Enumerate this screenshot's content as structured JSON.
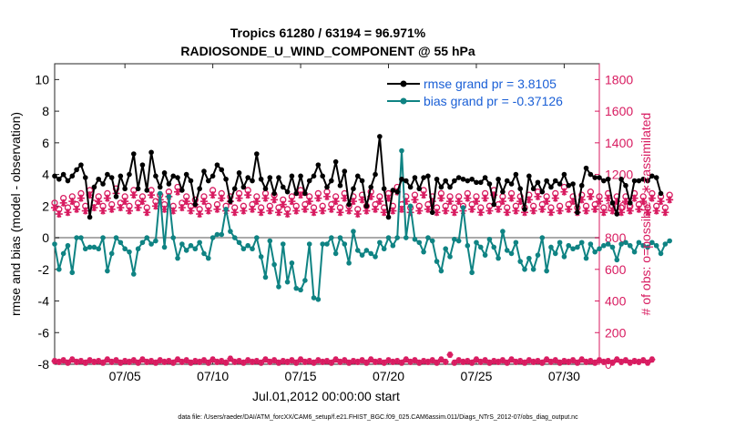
{
  "chart_data": {
    "type": "line",
    "title_line1": "Tropics 61280 / 63194 = 96.971%",
    "title_line2": "RADIOSONDE_U_WIND_COMPONENT @ 55 hPa",
    "ylabel_left": "rmse and bias (model - observation)",
    "ylabel_right": "# of obs: o=possible; ∗=assimilated",
    "xlabel": "Jul.01,2012 00:00:00 start",
    "footnote": "data file: /Users/raeder/DAI/ATM_forcXX/CAM6_setup/f.e21.FHIST_BGC.f09_025.CAM6assim.011/Diags_NTrS_2012-07/obs_diag_output.nc",
    "ylim_left": [
      -8,
      11
    ],
    "ylim_right": [
      0,
      1900
    ],
    "xlim": [
      1,
      32
    ],
    "left_ticks": [
      "-8",
      "-6",
      "-4",
      "-2",
      "0",
      "2",
      "4",
      "6",
      "8",
      "10"
    ],
    "right_ticks": [
      "0",
      "200",
      "400",
      "600",
      "800",
      "1000",
      "1200",
      "1400",
      "1600",
      "1800"
    ],
    "x_ticks": [
      {
        "day": 5,
        "label": "07/05"
      },
      {
        "day": 10,
        "label": "07/10"
      },
      {
        "day": 15,
        "label": "07/15"
      },
      {
        "day": 20,
        "label": "07/20"
      },
      {
        "day": 25,
        "label": "07/25"
      },
      {
        "day": 30,
        "label": "07/30"
      }
    ],
    "legend": {
      "placement": "top-right",
      "rmse_label": "rmse grand pr = 3.8105",
      "bias_label": "bias grand pr = -0.37126"
    },
    "colors": {
      "rmse": "#000000",
      "bias": "#0f8383",
      "obs": "#d81b60",
      "legend_text": "#1a5fd6",
      "zero_line": "#aaaaaa"
    },
    "x_start": 1.0,
    "x_step": 0.25,
    "series": [
      {
        "name": "rmse",
        "values": [
          3.9,
          3.7,
          4.0,
          3.6,
          3.9,
          4.3,
          4.6,
          3.8,
          1.3,
          3.2,
          3.7,
          3.4,
          4.0,
          3.8,
          2.6,
          3.9,
          3.1,
          4.0,
          5.3,
          3.1,
          4.6,
          3.0,
          5.4,
          3.9,
          3.2,
          4.1,
          3.4,
          3.9,
          3.8,
          3.0,
          4.0,
          3.6,
          2.1,
          3.1,
          4.2,
          3.6,
          3.9,
          4.6,
          4.3,
          3.7,
          2.3,
          3.1,
          4.1,
          3.2,
          3.8,
          3.6,
          5.3,
          3.7,
          3.1,
          3.8,
          2.8,
          3.8,
          3.2,
          2.9,
          3.9,
          2.8,
          3.9,
          2.8,
          3.6,
          3.9,
          4.6,
          3.9,
          3.2,
          3.6,
          4.8,
          3.3,
          4.2,
          2.1,
          3.1,
          3.9,
          3.6,
          2.0,
          3.2,
          4.0,
          6.4,
          3.1,
          1.3,
          3.0,
          2.9,
          3.7,
          3.6,
          3.2,
          3.8,
          3.1,
          3.8,
          3.9,
          1.6,
          3.7,
          3.2,
          3.6,
          3.2,
          3.6,
          3.8,
          3.7,
          3.6,
          3.7,
          3.5,
          3.5,
          3.8,
          3.4,
          2.1,
          3.7,
          2.9,
          3.6,
          3.4,
          4.0,
          3.1,
          1.8,
          3.9,
          3.1,
          3.5,
          2.9,
          3.6,
          3.2,
          3.6,
          3.4,
          4.0,
          3.3,
          3.4,
          1.6,
          3.3,
          4.4,
          4.0,
          3.8,
          3.8,
          3.6,
          3.7,
          2.2,
          1.5,
          3.7,
          3.3,
          2.2,
          3.6,
          3.6,
          3.7,
          3.6,
          3.9,
          3.8,
          2.8
        ]
      },
      {
        "name": "bias",
        "values": [
          -0.4,
          -2.0,
          -1.0,
          -0.5,
          -2.2,
          0.0,
          0.0,
          -0.7,
          -0.6,
          -0.6,
          -0.7,
          0.0,
          -2.1,
          -1.0,
          0.0,
          -0.3,
          -0.7,
          -0.9,
          -2.3,
          -0.7,
          -0.3,
          0.0,
          -0.4,
          -0.2,
          2.8,
          -0.6,
          2.6,
          0.0,
          -1.3,
          -0.4,
          -0.8,
          -0.5,
          -0.7,
          -0.3,
          -1.0,
          -1.3,
          0.0,
          0.2,
          0.2,
          1.8,
          0.4,
          0.0,
          -0.3,
          -0.7,
          -0.5,
          -0.7,
          0.0,
          -1.2,
          -2.5,
          -0.2,
          -1.7,
          -3.1,
          -0.4,
          -2.8,
          -1.6,
          -3.2,
          -3.3,
          -2.7,
          -0.4,
          -3.8,
          -3.9,
          -0.4,
          -0.4,
          0.0,
          -1.0,
          0.0,
          -0.4,
          -1.6,
          0.4,
          -0.8,
          -1.1,
          -0.8,
          -1.0,
          -1.2,
          -0.3,
          -0.7,
          0.0,
          -0.5,
          0.0,
          5.5,
          0.0,
          2.0,
          -0.1,
          -0.3,
          -0.9,
          0.0,
          -0.2,
          -1.5,
          -2.1,
          -0.7,
          -1.2,
          -0.1,
          -0.2,
          1.9,
          -0.5,
          -2.2,
          -0.3,
          -0.6,
          -1.1,
          -0.1,
          -0.6,
          -1.3,
          0.4,
          -0.8,
          -1.0,
          -0.3,
          -1.5,
          -2.0,
          -1.3,
          -2.0,
          -1.1,
          0.0,
          -2.1,
          -0.6,
          -1.0,
          -0.3,
          -1.2,
          -0.5,
          -0.7,
          -0.6,
          -0.3,
          -1.3,
          -0.4,
          -0.9,
          -0.7,
          -0.5,
          -0.4,
          -0.6,
          -1.4,
          -0.4,
          -0.3,
          -0.5,
          -0.9,
          -0.3,
          -0.5,
          -0.6,
          -0.3,
          -0.5,
          -1.0,
          -0.4,
          -0.2
        ]
      },
      {
        "name": "obs_possible",
        "values": [
          1020,
          980,
          1050,
          990,
          1060,
          1010,
          1080,
          1000,
          1100,
          1020,
          1060,
          1000,
          1080,
          1010,
          1110,
          1020,
          1060,
          1000,
          1100,
          1020,
          1060,
          990,
          1100,
          1030,
          1070,
          1010,
          1090,
          1000,
          1120,
          1020,
          1060,
          1000,
          1040,
          980,
          1060,
          1000,
          1100,
          1010,
          1080,
          1000,
          1060,
          990,
          1080,
          1000,
          1100,
          1010,
          1060,
          990,
          1080,
          1000,
          1070,
          990,
          1040,
          980,
          1060,
          1000,
          1100,
          1010,
          1060,
          990,
          1080,
          1000,
          1090,
          1010,
          1060,
          990,
          1080,
          1000,
          1060,
          980,
          1070,
          1000,
          1090,
          1010,
          1060,
          990,
          1080,
          1000,
          1120,
          1010,
          1060,
          990,
          1070,
          1000,
          1100,
          1010,
          1060,
          990,
          1080,
          1000,
          1060,
          990,
          1060,
          1000,
          1080,
          1010,
          1060,
          990,
          1080,
          1000,
          1100,
          1010,
          1060,
          990,
          1080,
          1000,
          1060,
          990,
          1070,
          1000,
          1090,
          1010,
          1060,
          990,
          1080,
          1000,
          1120,
          1010,
          1060,
          990,
          1070,
          1000,
          1090,
          1010,
          1060,
          990,
          1080,
          1000,
          1060,
          990,
          1060,
          1000,
          1080,
          1010,
          1060,
          990,
          1080,
          1000,
          1060,
          990,
          1070
        ]
      },
      {
        "name": "obs_assimilated",
        "values": [
          990,
          950,
          1020,
          960,
          1030,
          980,
          1050,
          970,
          1070,
          990,
          1030,
          970,
          1050,
          980,
          1080,
          990,
          1030,
          970,
          1070,
          990,
          1030,
          960,
          1070,
          1000,
          1040,
          980,
          1060,
          970,
          1090,
          990,
          1030,
          970,
          1010,
          950,
          1030,
          970,
          1070,
          980,
          1050,
          970,
          1030,
          960,
          1050,
          970,
          1070,
          980,
          1030,
          960,
          1050,
          970,
          1040,
          960,
          1010,
          950,
          1030,
          970,
          1070,
          980,
          1030,
          960,
          1050,
          970,
          1060,
          980,
          1030,
          960,
          1050,
          970,
          1030,
          950,
          1040,
          970,
          1060,
          980,
          1030,
          960,
          1050,
          970,
          1090,
          980,
          1030,
          960,
          1040,
          970,
          1070,
          980,
          1030,
          960,
          1050,
          970,
          1030,
          960,
          1030,
          970,
          1050,
          980,
          1030,
          960,
          1050,
          970,
          1070,
          980,
          1030,
          960,
          1050,
          970,
          1030,
          960,
          1040,
          970,
          1060,
          980,
          1030,
          960,
          1050,
          970,
          1090,
          980,
          1030,
          960,
          1040,
          970,
          1060,
          980,
          1030,
          960,
          1050,
          970,
          1030,
          960,
          1030,
          970,
          1050,
          980,
          1030,
          960,
          1050,
          970,
          1030,
          960,
          1040
        ]
      },
      {
        "name": "obs_rejected_possible",
        "values": [
          20,
          15,
          25,
          10,
          30,
          15,
          20,
          10,
          25,
          15,
          20,
          10,
          30,
          15,
          25,
          10,
          20,
          15,
          25,
          10,
          30,
          15,
          20,
          10,
          25,
          15,
          20,
          10,
          30,
          15,
          25,
          10,
          20,
          15,
          25,
          10,
          30,
          15,
          20,
          10,
          35,
          15,
          20,
          10,
          25,
          15,
          20,
          10,
          30,
          15,
          25,
          10,
          20,
          15,
          25,
          10,
          30,
          15,
          20,
          10,
          25,
          15,
          20,
          10,
          30,
          15,
          25,
          10,
          20,
          15,
          25,
          10,
          30,
          15,
          20,
          10,
          25,
          15,
          20,
          10,
          30,
          15,
          25,
          10,
          20,
          15,
          25,
          10,
          30,
          15,
          60,
          10,
          25,
          15,
          20,
          10,
          30,
          15,
          25,
          10,
          20,
          15,
          25,
          10,
          30,
          15,
          20,
          10,
          25,
          15,
          20,
          10,
          30,
          15,
          25,
          10,
          20,
          15,
          25,
          10,
          30,
          15,
          20,
          10,
          25,
          15,
          20,
          10,
          30,
          15,
          25,
          10,
          20,
          15,
          25,
          10,
          30
        ]
      }
    ]
  }
}
